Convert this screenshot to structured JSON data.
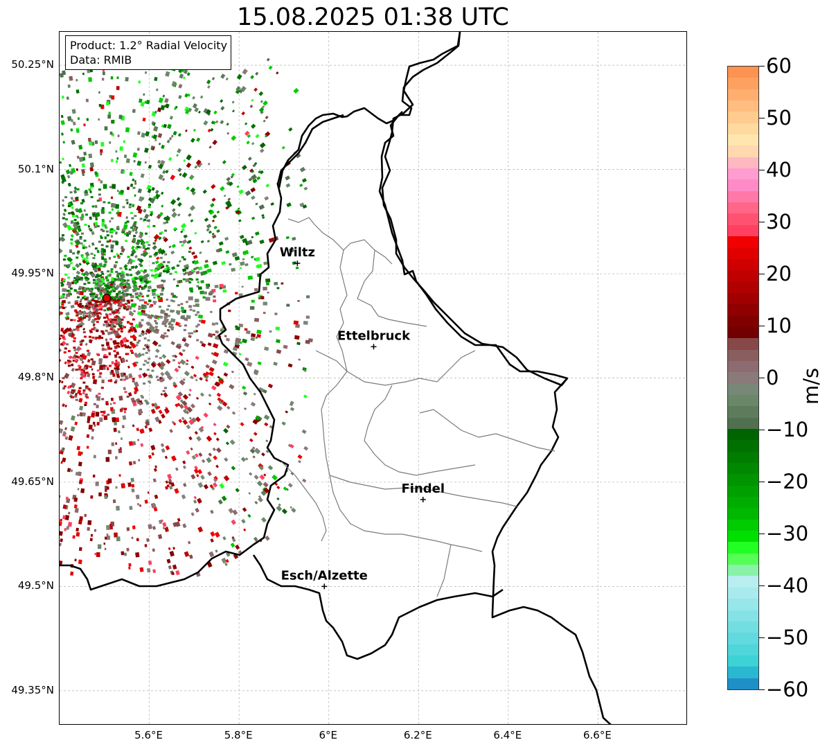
{
  "title": "15.08.2025 01:38 UTC",
  "info": {
    "product": "Product: 1.2° Radial Velocity",
    "data": "Data: RMIB"
  },
  "axes": {
    "lat_ticks": [
      "50.25°N",
      "50.1°N",
      "49.95°N",
      "49.8°N",
      "49.65°N",
      "49.5°N",
      "49.35°N"
    ],
    "lon_ticks": [
      "5.6°E",
      "5.8°E",
      "6°E",
      "6.2°E",
      "6.4°E",
      "6.6°E"
    ],
    "grid": true
  },
  "cities": [
    {
      "name": "Wiltz",
      "lon": 5.93,
      "lat": 49.965
    },
    {
      "name": "Ettelbruck",
      "lon": 6.1,
      "lat": 49.845
    },
    {
      "name": "Findel",
      "lon": 6.21,
      "lat": 49.625
    },
    {
      "name": "Esch/Alzette",
      "lon": 5.99,
      "lat": 49.5
    }
  ],
  "radar_site": {
    "lon": 5.505,
    "lat": 49.915
  },
  "colorbar": {
    "unit": "m/s",
    "min": -60,
    "max": 60,
    "tick_labels": [
      "60",
      "50",
      "40",
      "30",
      "20",
      "10",
      "0",
      "−10",
      "−20",
      "−30",
      "−40",
      "−50",
      "−60"
    ],
    "colors_top_to_bottom": [
      "#fd9350",
      "#fea160",
      "#feaf70",
      "#ffbd80",
      "#ffcb8f",
      "#ffd99f",
      "#ffe6ae",
      "#ffd8b0",
      "#ffb8c0",
      "#ff9cd0",
      "#ff8ac8",
      "#ff78a8",
      "#ff6688",
      "#ff5270",
      "#ff4060",
      "#f00000",
      "#e00000",
      "#d00000",
      "#c00000",
      "#b00000",
      "#a00000",
      "#900000",
      "#800000",
      "#730000",
      "#864848",
      "#8a5e5e",
      "#8c6c70",
      "#8b7a7a",
      "#788878",
      "#6a8868",
      "#5c7c5c",
      "#507050",
      "#006400",
      "#007000",
      "#007c00",
      "#008800",
      "#009400",
      "#00a000",
      "#00ac00",
      "#00b800",
      "#00cc00",
      "#00e000",
      "#22ff22",
      "#55ff55",
      "#88f2a8",
      "#b8eef0",
      "#a8eaee",
      "#96e6ea",
      "#84e2e6",
      "#72dee2",
      "#60dade",
      "#4ed6da",
      "#3cd2d6",
      "#2ab8d0",
      "#1f8fc8"
    ]
  }
}
